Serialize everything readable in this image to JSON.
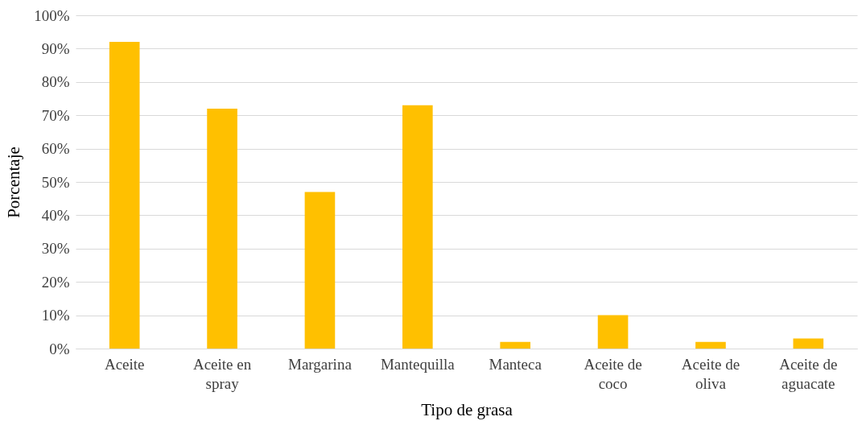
{
  "chart_data": {
    "type": "bar",
    "xlabel": "Tipo de grasa",
    "ylabel": "Porcentaje",
    "categories": [
      "Aceite",
      "Aceite en spray",
      "Margarina",
      "Mantequilla",
      "Manteca",
      "Aceite de coco",
      "Aceite de oliva",
      "Aceite de aguacate"
    ],
    "values": [
      92,
      72,
      47,
      73,
      2,
      10,
      2,
      3
    ],
    "color": "#ffc000",
    "ylim": [
      0,
      100
    ],
    "yticks": [
      {
        "value": 0,
        "label": "0%"
      },
      {
        "value": 10,
        "label": "10%"
      },
      {
        "value": 20,
        "label": "20%"
      },
      {
        "value": 30,
        "label": "30%"
      },
      {
        "value": 40,
        "label": "40%"
      },
      {
        "value": 50,
        "label": "50%"
      },
      {
        "value": 60,
        "label": "60%"
      },
      {
        "value": 70,
        "label": "70%"
      },
      {
        "value": 80,
        "label": "80%"
      },
      {
        "value": 90,
        "label": "90%"
      },
      {
        "value": 100,
        "label": "100%"
      }
    ],
    "grid": "y"
  }
}
